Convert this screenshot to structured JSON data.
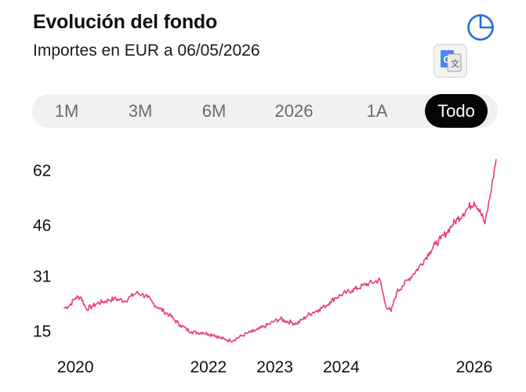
{
  "header": {
    "title": "Evolución del fondo",
    "subtitle": "Importes en EUR a 06/05/2026"
  },
  "icons": {
    "chart_type": "pie-chart-icon",
    "translate": "google-translate-icon"
  },
  "tabs": [
    {
      "label": "1M",
      "active": false
    },
    {
      "label": "3M",
      "active": false
    },
    {
      "label": "6M",
      "active": false
    },
    {
      "label": "2026",
      "active": false
    },
    {
      "label": "1A",
      "active": false
    },
    {
      "label": "Todo",
      "active": true
    }
  ],
  "colors": {
    "line": "#e83e6c",
    "accent": "#1f6fe0",
    "active_tab_bg": "#050505"
  },
  "chart_data": {
    "type": "line",
    "title": "",
    "xlabel": "",
    "ylabel": "",
    "y_ticks": [
      15,
      31,
      46,
      62
    ],
    "x_ticks": [
      "2020",
      "2022",
      "2023",
      "2024",
      "2026"
    ],
    "ylim": [
      11,
      66
    ],
    "grid": false,
    "series": [
      {
        "values": [
          [
            "2019-11",
            21.8
          ],
          [
            "2019-12",
            22.6
          ],
          [
            "2020-01",
            24.8
          ],
          [
            "2020-02",
            25.0
          ],
          [
            "2020-03",
            21.5
          ],
          [
            "2020-04",
            22.2
          ],
          [
            "2020-05",
            23.2
          ],
          [
            "2020-06",
            23.6
          ],
          [
            "2020-07",
            24.1
          ],
          [
            "2020-08",
            24.5
          ],
          [
            "2020-09",
            24.2
          ],
          [
            "2020-10",
            23.9
          ],
          [
            "2020-11",
            25.2
          ],
          [
            "2020-12",
            26.2
          ],
          [
            "2021-01",
            25.8
          ],
          [
            "2021-02",
            24.9
          ],
          [
            "2021-03",
            23.3
          ],
          [
            "2021-04",
            21.9
          ],
          [
            "2021-05",
            20.8
          ],
          [
            "2021-06",
            19.8
          ],
          [
            "2021-07",
            18.2
          ],
          [
            "2021-08",
            16.8
          ],
          [
            "2021-09",
            15.6
          ],
          [
            "2021-10",
            14.9
          ],
          [
            "2021-11",
            14.6
          ],
          [
            "2021-12",
            14.7
          ],
          [
            "2022-01",
            14.2
          ],
          [
            "2022-02",
            14.0
          ],
          [
            "2022-03",
            13.2
          ],
          [
            "2022-04",
            12.6
          ],
          [
            "2022-05",
            12.3
          ],
          [
            "2022-06",
            12.8
          ],
          [
            "2022-07",
            13.6
          ],
          [
            "2022-08",
            14.4
          ],
          [
            "2022-09",
            14.9
          ],
          [
            "2022-10",
            15.5
          ],
          [
            "2022-11",
            16.3
          ],
          [
            "2022-12",
            17.1
          ],
          [
            "2023-01",
            18.0
          ],
          [
            "2023-02",
            18.6
          ],
          [
            "2023-03",
            18.0
          ],
          [
            "2023-04",
            17.6
          ],
          [
            "2023-05",
            17.2
          ],
          [
            "2023-06",
            18.4
          ],
          [
            "2023-07",
            19.7
          ],
          [
            "2023-08",
            20.6
          ],
          [
            "2023-09",
            21.4
          ],
          [
            "2023-10",
            22.2
          ],
          [
            "2023-11",
            23.6
          ],
          [
            "2023-12",
            24.8
          ],
          [
            "2024-01",
            25.6
          ],
          [
            "2024-02",
            26.4
          ],
          [
            "2024-03",
            27.0
          ],
          [
            "2024-04",
            27.6
          ],
          [
            "2024-05",
            28.4
          ],
          [
            "2024-06",
            29.0
          ],
          [
            "2024-07",
            29.4
          ],
          [
            "2024-08",
            30.1
          ],
          [
            "2024-09",
            22.6
          ],
          [
            "2024-10",
            20.8
          ],
          [
            "2024-11",
            26.4
          ],
          [
            "2024-12",
            28.2
          ],
          [
            "2025-01",
            30.0
          ],
          [
            "2025-02",
            31.8
          ],
          [
            "2025-03",
            33.6
          ],
          [
            "2025-04",
            35.8
          ],
          [
            "2025-05",
            38.2
          ],
          [
            "2025-06",
            40.4
          ],
          [
            "2025-07",
            42.0
          ],
          [
            "2025-08",
            43.8
          ],
          [
            "2025-09",
            46.0
          ],
          [
            "2025-10",
            47.8
          ],
          [
            "2025-11",
            49.4
          ],
          [
            "2025-12",
            51.2
          ],
          [
            "2026-01",
            52.8
          ],
          [
            "2026-02",
            50.6
          ],
          [
            "2026-03",
            46.4
          ],
          [
            "2026-04",
            55.4
          ],
          [
            "2026-05",
            65.2
          ]
        ]
      }
    ]
  }
}
